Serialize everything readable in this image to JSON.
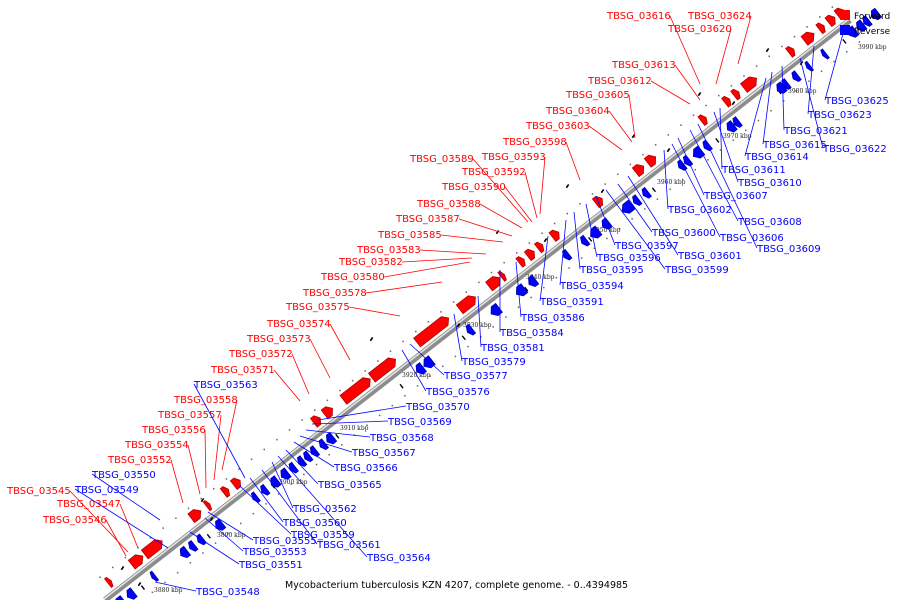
{
  "legend": {
    "forward": {
      "label": "Forward",
      "color": "#ff0000"
    },
    "reverse": {
      "label": "Reverse",
      "color": "#0000ff"
    }
  },
  "caption": "Mycobacterium tuberculosis KZN 4207, complete genome. - 0..4394985",
  "ticks": [
    "3880 kbp",
    "3890 kbp",
    "3900 kbp",
    "3910 kbp",
    "3920 kbp",
    "3930 kbp",
    "3940 kbp",
    "3950 kbp",
    "3960 kbp",
    "3970 kbp",
    "3980 kbp",
    "3990 kbp"
  ],
  "forward_genes": [
    "TBSG_03545",
    "TBSG_03546",
    "TBSG_03547",
    "TBSG_03552",
    "TBSG_03554",
    "TBSG_03556",
    "TBSG_03557",
    "TBSG_03558",
    "TBSG_03571",
    "TBSG_03572",
    "TBSG_03573",
    "TBSG_03574",
    "TBSG_03575",
    "TBSG_03578",
    "TBSG_03580",
    "TBSG_03582",
    "TBSG_03583",
    "TBSG_03585",
    "TBSG_03587",
    "TBSG_03588",
    "TBSG_03590",
    "TBSG_03592",
    "TBSG_03589",
    "TBSG_03593",
    "TBSG_03598",
    "TBSG_03603",
    "TBSG_03604",
    "TBSG_03605",
    "TBSG_03612",
    "TBSG_03613",
    "TBSG_03616",
    "TBSG_03620",
    "TBSG_03624"
  ],
  "reverse_genes": [
    "TBSG_03548",
    "TBSG_03549",
    "TBSG_03550",
    "TBSG_03551",
    "TBSG_03553",
    "TBSG_03555",
    "TBSG_03559",
    "TBSG_03560",
    "TBSG_03561",
    "TBSG_03562",
    "TBSG_03563",
    "TBSG_03564",
    "TBSG_03565",
    "TBSG_03566",
    "TBSG_03567",
    "TBSG_03568",
    "TBSG_03569",
    "TBSG_03570",
    "TBSG_03576",
    "TBSG_03577",
    "TBSG_03579",
    "TBSG_03581",
    "TBSG_03584",
    "TBSG_03586",
    "TBSG_03591",
    "TBSG_03594",
    "TBSG_03595",
    "TBSG_03596",
    "TBSG_03597",
    "TBSG_03599",
    "TBSG_03600",
    "TBSG_03601",
    "TBSG_03602",
    "TBSG_03606",
    "TBSG_03607",
    "TBSG_03608",
    "TBSG_03609",
    "TBSG_03610",
    "TBSG_03611",
    "TBSG_03614",
    "TBSG_03615",
    "TBSG_03621",
    "TBSG_03622",
    "TBSG_03623",
    "TBSG_03625"
  ]
}
